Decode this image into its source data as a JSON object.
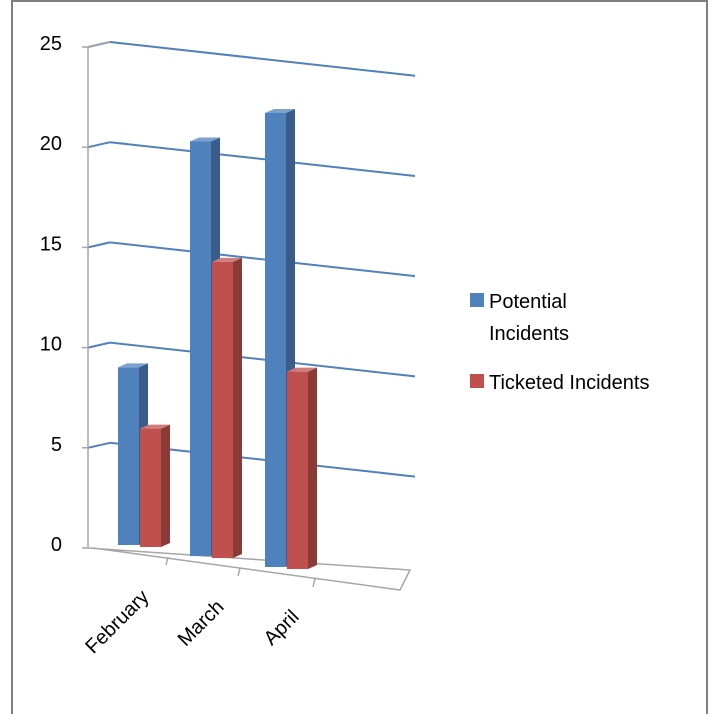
{
  "chart_data": {
    "type": "bar",
    "style": "3d-clustered-column",
    "categories": [
      "February",
      "March",
      "April"
    ],
    "series": [
      {
        "name": "Potential Incidents",
        "values": [
          9,
          21,
          23
        ],
        "color": "#4F81BD"
      },
      {
        "name": "Ticketed Incidents",
        "values": [
          6,
          15,
          10
        ],
        "color": "#C0504D"
      }
    ],
    "ylim": [
      0,
      25
    ],
    "yticks": [
      0,
      5,
      10,
      15,
      20,
      25
    ],
    "grid": true,
    "legend_position": "right"
  },
  "colors": {
    "gridline": "#4F81BD",
    "axis": "#A6A6A6",
    "frame": "#7F7F7F"
  }
}
